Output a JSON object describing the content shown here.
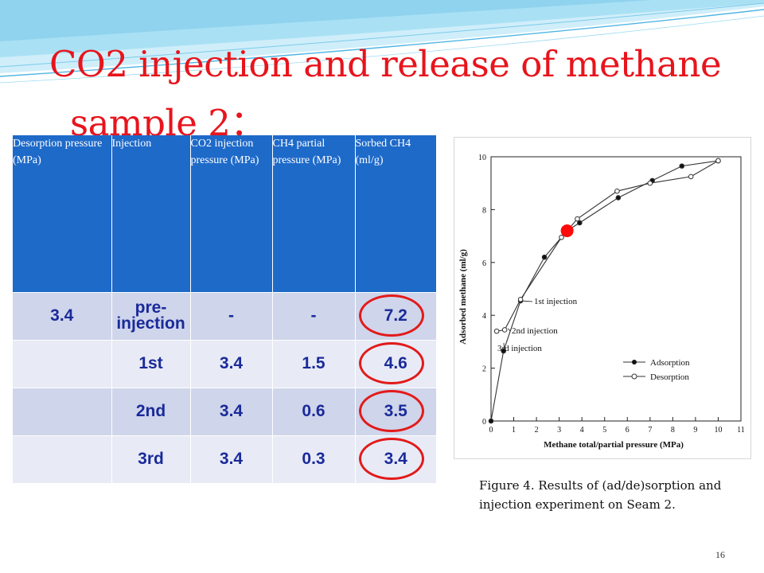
{
  "slide": {
    "title_line1": "CO2 injection and release of methane",
    "title_line2": "sample 2：",
    "page_number": "16",
    "accent_color": "#e8141c",
    "header_color": "#1e6ac9"
  },
  "table": {
    "headers": [
      "Desorption pressure (MPa)",
      "Injection",
      "CO2 injection pressure (MPa)",
      "CH4 partial pressure (MPa)",
      "Sorbed CH4 (ml/g)"
    ],
    "rows": [
      {
        "desorption": "3.4",
        "injection": "pre-injection",
        "co2": "-",
        "ch4": "-",
        "sorbed": "7.2"
      },
      {
        "desorption": "",
        "injection": "1st",
        "co2": "3.4",
        "ch4": "1.5",
        "sorbed": "4.6"
      },
      {
        "desorption": "",
        "injection": "2nd",
        "co2": "3.4",
        "ch4": "0.6",
        "sorbed": "3.5"
      },
      {
        "desorption": "",
        "injection": "3rd",
        "co2": "3.4",
        "ch4": "0.3",
        "sorbed": "3.4"
      }
    ]
  },
  "figure": {
    "caption": "Figure 4. Results of (ad/de)sorption and injection experiment on Seam 2.",
    "annotations": {
      "first": "1st injection",
      "second": "2nd injection",
      "third": "3rd injection"
    }
  },
  "chart_data": {
    "type": "line",
    "xlabel": "Methane total/partial pressure (MPa)",
    "ylabel": "Adsorbed methane (ml/g)",
    "xlim": [
      0,
      11
    ],
    "ylim": [
      0,
      10
    ],
    "xticks": [
      "0",
      "1",
      "2",
      "3",
      "4",
      "5",
      "6",
      "7",
      "8",
      "9",
      "10",
      "11"
    ],
    "yticks": [
      "0",
      "2",
      "4",
      "6",
      "8",
      "10"
    ],
    "legend_position": "bottom-right",
    "series": [
      {
        "name": "Adsorption",
        "marker": "filled",
        "x": [
          0,
          0.55,
          1.3,
          2.35,
          3.35,
          3.9,
          5.6,
          7.1,
          8.4,
          10.0
        ],
        "y": [
          0.0,
          2.65,
          4.55,
          6.2,
          7.2,
          7.5,
          8.45,
          9.1,
          9.65,
          9.85
        ]
      },
      {
        "name": "Desorption",
        "marker": "open",
        "x": [
          10.0,
          8.8,
          7.0,
          5.55,
          3.8,
          3.1,
          1.3,
          0.6,
          0.25
        ],
        "y": [
          9.85,
          9.25,
          9.0,
          8.7,
          7.65,
          6.95,
          4.6,
          3.45,
          3.4
        ]
      }
    ],
    "highlight_point": {
      "x": 3.35,
      "y": 7.2
    }
  }
}
